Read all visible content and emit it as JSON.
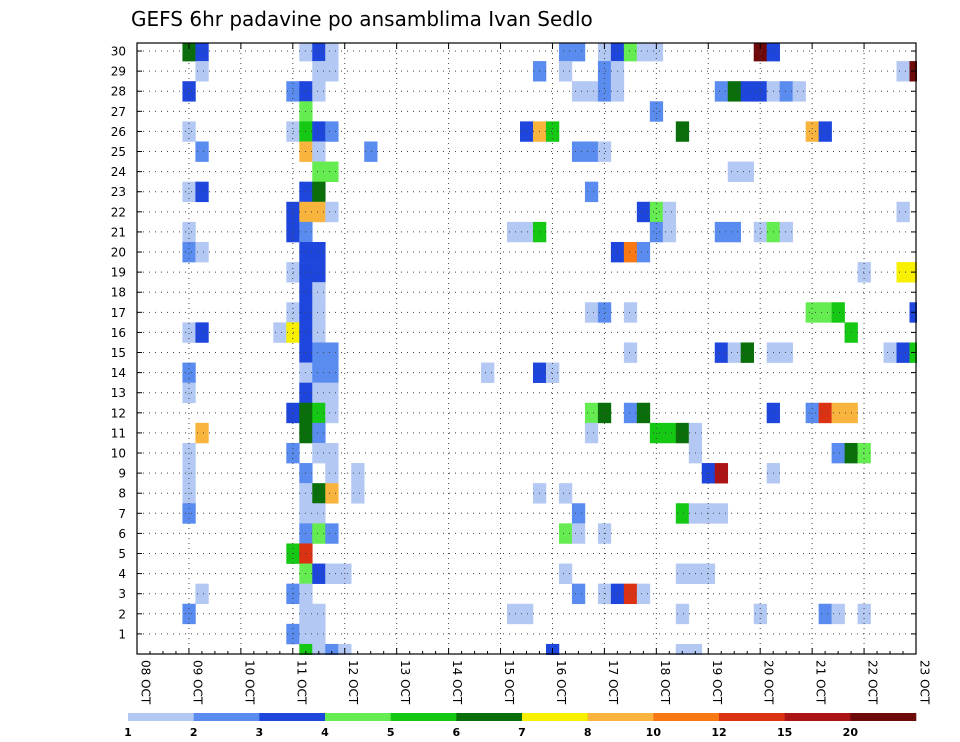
{
  "chart_data": {
    "type": "heatmap",
    "title": "GEFS 6hr padavine po ansamblima Ivan Sedlo",
    "xlabel": "",
    "ylabel": "",
    "x_tick_labels": [
      "08 OCT",
      "09 OCT",
      "10 OCT",
      "11 OCT",
      "12 OCT",
      "13 OCT",
      "14 OCT",
      "15 OCT",
      "16 OCT",
      "17 OCT",
      "18 OCT",
      "19 OCT",
      "20 OCT",
      "21 OCT",
      "22 OCT",
      "23 OCT"
    ],
    "y_tick_labels": [
      "1",
      "2",
      "3",
      "4",
      "5",
      "6",
      "7",
      "8",
      "9",
      "10",
      "11",
      "12",
      "13",
      "14",
      "15",
      "16",
      "17",
      "18",
      "19",
      "20",
      "21",
      "22",
      "23",
      "24",
      "25",
      "26",
      "27",
      "28",
      "29",
      "30"
    ],
    "xlim": [
      0,
      60
    ],
    "ylim": [
      0,
      30.4
    ],
    "grid": true,
    "colorbar": {
      "placement": "bottom",
      "thresholds": [
        1,
        2,
        3,
        4,
        5,
        6,
        7,
        8,
        10,
        12,
        15,
        20
      ],
      "labels": [
        "1",
        "2",
        "3",
        "4",
        "5",
        "6",
        "7",
        "8",
        "10",
        "12",
        "15",
        "20"
      ],
      "colors": [
        "#b4c8f4",
        "#5a8cf0",
        "#1e46dc",
        "#64ec50",
        "#14c814",
        "#0a6e0a",
        "#f8f000",
        "#f8b43c",
        "#f87814",
        "#dc3214",
        "#aa1414",
        "#6e0a0a"
      ]
    },
    "cells": [
      [
        30,
        4,
        5
      ],
      [
        30,
        5,
        2
      ],
      [
        30,
        13,
        0
      ],
      [
        30,
        14,
        2
      ],
      [
        30,
        15,
        0
      ],
      [
        30,
        33,
        1
      ],
      [
        30,
        34,
        1
      ],
      [
        30,
        36,
        0
      ],
      [
        30,
        37,
        2
      ],
      [
        30,
        38,
        3
      ],
      [
        30,
        39,
        0
      ],
      [
        30,
        40,
        0
      ],
      [
        30,
        48,
        11
      ],
      [
        30,
        49,
        2
      ],
      [
        29,
        5,
        0
      ],
      [
        29,
        14,
        0
      ],
      [
        29,
        15,
        0
      ],
      [
        29,
        31,
        1
      ],
      [
        29,
        33,
        0
      ],
      [
        29,
        36,
        1
      ],
      [
        29,
        37,
        0
      ],
      [
        29,
        59,
        0
      ],
      [
        29,
        60,
        11
      ],
      [
        28,
        4,
        2
      ],
      [
        28,
        12,
        1
      ],
      [
        28,
        13,
        2
      ],
      [
        28,
        14,
        0
      ],
      [
        28,
        34,
        0
      ],
      [
        28,
        35,
        0
      ],
      [
        28,
        36,
        1
      ],
      [
        28,
        37,
        0
      ],
      [
        28,
        45,
        1
      ],
      [
        28,
        46,
        5
      ],
      [
        28,
        47,
        2
      ],
      [
        28,
        48,
        2
      ],
      [
        28,
        49,
        0
      ],
      [
        28,
        50,
        1
      ],
      [
        28,
        51,
        0
      ],
      [
        27,
        13,
        3
      ],
      [
        27,
        40,
        1
      ],
      [
        26,
        4,
        0
      ],
      [
        26,
        12,
        0
      ],
      [
        26,
        13,
        4
      ],
      [
        26,
        14,
        2
      ],
      [
        26,
        15,
        1
      ],
      [
        26,
        30,
        2
      ],
      [
        26,
        31,
        7
      ],
      [
        26,
        32,
        4
      ],
      [
        26,
        42,
        5
      ],
      [
        26,
        52,
        7
      ],
      [
        26,
        53,
        2
      ],
      [
        25,
        5,
        1
      ],
      [
        25,
        13,
        7
      ],
      [
        25,
        14,
        0
      ],
      [
        25,
        18,
        1
      ],
      [
        25,
        34,
        1
      ],
      [
        25,
        35,
        1
      ],
      [
        25,
        36,
        0
      ],
      [
        24,
        14,
        3
      ],
      [
        24,
        15,
        3
      ],
      [
        24,
        46,
        0
      ],
      [
        24,
        47,
        0
      ],
      [
        23,
        4,
        0
      ],
      [
        23,
        5,
        2
      ],
      [
        23,
        13,
        2
      ],
      [
        23,
        14,
        5
      ],
      [
        23,
        35,
        1
      ],
      [
        22,
        12,
        2
      ],
      [
        22,
        13,
        7
      ],
      [
        22,
        14,
        7
      ],
      [
        22,
        15,
        0
      ],
      [
        22,
        39,
        2
      ],
      [
        22,
        40,
        3
      ],
      [
        22,
        41,
        0
      ],
      [
        22,
        59,
        0
      ],
      [
        21,
        4,
        0
      ],
      [
        21,
        12,
        2
      ],
      [
        21,
        13,
        1
      ],
      [
        21,
        29,
        0
      ],
      [
        21,
        30,
        0
      ],
      [
        21,
        31,
        4
      ],
      [
        21,
        40,
        1
      ],
      [
        21,
        41,
        0
      ],
      [
        21,
        45,
        1
      ],
      [
        21,
        46,
        1
      ],
      [
        21,
        48,
        0
      ],
      [
        21,
        49,
        3
      ],
      [
        21,
        50,
        0
      ],
      [
        20,
        4,
        1
      ],
      [
        20,
        5,
        0
      ],
      [
        20,
        13,
        2
      ],
      [
        20,
        14,
        2
      ],
      [
        20,
        37,
        2
      ],
      [
        20,
        38,
        8
      ],
      [
        20,
        39,
        1
      ],
      [
        19,
        12,
        0
      ],
      [
        19,
        13,
        2
      ],
      [
        19,
        14,
        2
      ],
      [
        19,
        56,
        0
      ],
      [
        19,
        59,
        6
      ],
      [
        19,
        60,
        6
      ],
      [
        18,
        13,
        2
      ],
      [
        18,
        14,
        0
      ],
      [
        17,
        12,
        0
      ],
      [
        17,
        13,
        2
      ],
      [
        17,
        14,
        0
      ],
      [
        17,
        35,
        0
      ],
      [
        17,
        36,
        1
      ],
      [
        17,
        38,
        0
      ],
      [
        17,
        52,
        3
      ],
      [
        17,
        53,
        3
      ],
      [
        17,
        54,
        4
      ],
      [
        17,
        60,
        2
      ],
      [
        16,
        4,
        0
      ],
      [
        16,
        5,
        2
      ],
      [
        16,
        11,
        0
      ],
      [
        16,
        12,
        6
      ],
      [
        16,
        13,
        2
      ],
      [
        16,
        14,
        0
      ],
      [
        16,
        55,
        4
      ],
      [
        15,
        13,
        2
      ],
      [
        15,
        14,
        1
      ],
      [
        15,
        15,
        1
      ],
      [
        15,
        38,
        0
      ],
      [
        15,
        45,
        2
      ],
      [
        15,
        46,
        0
      ],
      [
        15,
        47,
        5
      ],
      [
        15,
        49,
        0
      ],
      [
        15,
        50,
        0
      ],
      [
        15,
        58,
        0
      ],
      [
        15,
        59,
        2
      ],
      [
        15,
        60,
        4
      ],
      [
        14,
        4,
        1
      ],
      [
        14,
        13,
        0
      ],
      [
        14,
        14,
        1
      ],
      [
        14,
        15,
        1
      ],
      [
        14,
        27,
        0
      ],
      [
        14,
        31,
        2
      ],
      [
        14,
        32,
        0
      ],
      [
        13,
        4,
        0
      ],
      [
        13,
        13,
        2
      ],
      [
        13,
        14,
        0
      ],
      [
        13,
        15,
        0
      ],
      [
        12,
        12,
        2
      ],
      [
        12,
        13,
        5
      ],
      [
        12,
        14,
        4
      ],
      [
        12,
        15,
        0
      ],
      [
        12,
        35,
        3
      ],
      [
        12,
        36,
        5
      ],
      [
        12,
        38,
        1
      ],
      [
        12,
        39,
        5
      ],
      [
        12,
        49,
        2
      ],
      [
        12,
        52,
        1
      ],
      [
        12,
        53,
        9
      ],
      [
        12,
        54,
        7
      ],
      [
        12,
        55,
        7
      ],
      [
        11,
        5,
        7
      ],
      [
        11,
        13,
        5
      ],
      [
        11,
        14,
        1
      ],
      [
        11,
        35,
        0
      ],
      [
        11,
        40,
        4
      ],
      [
        11,
        41,
        4
      ],
      [
        11,
        42,
        5
      ],
      [
        11,
        43,
        0
      ],
      [
        10,
        4,
        0
      ],
      [
        10,
        12,
        1
      ],
      [
        10,
        14,
        0
      ],
      [
        10,
        15,
        0
      ],
      [
        10,
        43,
        0
      ],
      [
        10,
        54,
        1
      ],
      [
        10,
        55,
        5
      ],
      [
        10,
        56,
        3
      ],
      [
        9,
        4,
        0
      ],
      [
        9,
        13,
        1
      ],
      [
        9,
        15,
        0
      ],
      [
        9,
        17,
        0
      ],
      [
        9,
        44,
        2
      ],
      [
        9,
        45,
        10
      ],
      [
        9,
        49,
        0
      ],
      [
        8,
        4,
        0
      ],
      [
        8,
        13,
        0
      ],
      [
        8,
        14,
        5
      ],
      [
        8,
        15,
        7
      ],
      [
        8,
        17,
        0
      ],
      [
        8,
        31,
        0
      ],
      [
        8,
        33,
        0
      ],
      [
        7,
        4,
        1
      ],
      [
        7,
        13,
        0
      ],
      [
        7,
        14,
        0
      ],
      [
        7,
        34,
        1
      ],
      [
        7,
        42,
        4
      ],
      [
        7,
        43,
        0
      ],
      [
        7,
        44,
        0
      ],
      [
        7,
        45,
        0
      ],
      [
        6,
        13,
        1
      ],
      [
        6,
        14,
        3
      ],
      [
        6,
        15,
        1
      ],
      [
        6,
        33,
        3
      ],
      [
        6,
        34,
        0
      ],
      [
        6,
        36,
        0
      ],
      [
        5,
        12,
        4
      ],
      [
        5,
        13,
        9
      ],
      [
        4,
        13,
        3
      ],
      [
        4,
        14,
        2
      ],
      [
        4,
        15,
        0
      ],
      [
        4,
        16,
        0
      ],
      [
        4,
        33,
        0
      ],
      [
        4,
        42,
        0
      ],
      [
        4,
        43,
        0
      ],
      [
        4,
        44,
        0
      ],
      [
        3,
        5,
        0
      ],
      [
        3,
        12,
        1
      ],
      [
        3,
        13,
        0
      ],
      [
        3,
        34,
        1
      ],
      [
        3,
        36,
        0
      ],
      [
        3,
        37,
        2
      ],
      [
        3,
        38,
        9
      ],
      [
        3,
        39,
        0
      ],
      [
        2,
        4,
        1
      ],
      [
        2,
        13,
        0
      ],
      [
        2,
        14,
        0
      ],
      [
        2,
        29,
        0
      ],
      [
        2,
        30,
        0
      ],
      [
        2,
        42,
        0
      ],
      [
        2,
        48,
        0
      ],
      [
        2,
        53,
        1
      ],
      [
        2,
        54,
        0
      ],
      [
        2,
        56,
        0
      ],
      [
        1,
        12,
        1
      ],
      [
        1,
        13,
        0
      ],
      [
        1,
        14,
        0
      ],
      [
        0,
        13,
        4
      ],
      [
        0,
        14,
        0
      ],
      [
        0,
        15,
        1
      ],
      [
        0,
        16,
        0
      ],
      [
        0,
        32,
        2
      ],
      [
        0,
        42,
        0
      ],
      [
        0,
        43,
        0
      ],
      [
        -1,
        4,
        0
      ],
      [
        -1,
        14,
        8
      ],
      [
        -1,
        39,
        0
      ],
      [
        -1,
        40,
        0
      ]
    ]
  }
}
